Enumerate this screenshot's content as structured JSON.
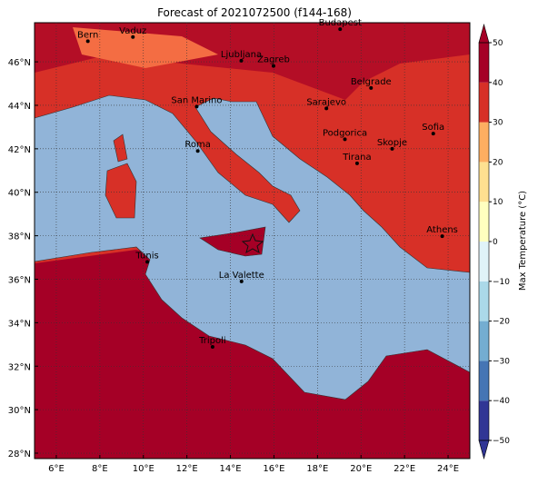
{
  "title": "Forecast of 2021072500 (f144-168)",
  "map": {
    "lon_range": [
      5,
      25
    ],
    "lat_range": [
      27.75,
      47.8
    ],
    "xticks": [
      {
        "value": 6,
        "label": "6°E"
      },
      {
        "value": 8,
        "label": "8°E"
      },
      {
        "value": 10,
        "label": "10°E"
      },
      {
        "value": 12,
        "label": "12°E"
      },
      {
        "value": 14,
        "label": "14°E"
      },
      {
        "value": 16,
        "label": "16°E"
      },
      {
        "value": 18,
        "label": "18°E"
      },
      {
        "value": 20,
        "label": "20°E"
      },
      {
        "value": 22,
        "label": "22°E"
      },
      {
        "value": 24,
        "label": "24°E"
      }
    ],
    "yticks": [
      {
        "value": 28,
        "label": "28°N"
      },
      {
        "value": 30,
        "label": "30°N"
      },
      {
        "value": 32,
        "label": "32°N"
      },
      {
        "value": 34,
        "label": "34°N"
      },
      {
        "value": 36,
        "label": "36°N"
      },
      {
        "value": 38,
        "label": "38°N"
      },
      {
        "value": 40,
        "label": "40°N"
      },
      {
        "value": 42,
        "label": "42°N"
      },
      {
        "value": 44,
        "label": "44°N"
      },
      {
        "value": 46,
        "label": "46°N"
      }
    ],
    "grid": true,
    "cities": [
      {
        "name": "Bern",
        "lon": 7.45,
        "lat": 46.95
      },
      {
        "name": "Vaduz",
        "lon": 9.52,
        "lat": 47.14
      },
      {
        "name": "Budapest",
        "lon": 19.04,
        "lat": 47.5
      },
      {
        "name": "Ljubljana",
        "lon": 14.5,
        "lat": 46.05
      },
      {
        "name": "Zagreb",
        "lon": 15.98,
        "lat": 45.81
      },
      {
        "name": "Belgrade",
        "lon": 20.46,
        "lat": 44.8
      },
      {
        "name": "San Marino",
        "lon": 12.45,
        "lat": 43.94
      },
      {
        "name": "Sarajevo",
        "lon": 18.41,
        "lat": 43.86
      },
      {
        "name": "Sofia",
        "lon": 23.32,
        "lat": 42.7
      },
      {
        "name": "Podgorica",
        "lon": 19.26,
        "lat": 42.44
      },
      {
        "name": "Skopje",
        "lon": 21.43,
        "lat": 42.0
      },
      {
        "name": "Roma",
        "lon": 12.5,
        "lat": 41.9
      },
      {
        "name": "Tirana",
        "lon": 19.82,
        "lat": 41.33
      },
      {
        "name": "Athens",
        "lon": 23.73,
        "lat": 37.98
      },
      {
        "name": "Tunis",
        "lon": 10.18,
        "lat": 36.8
      },
      {
        "name": "La Valette",
        "lon": 14.51,
        "lat": 35.9
      },
      {
        "name": "Tripoli",
        "lon": 13.18,
        "lat": 32.89
      }
    ]
  },
  "colorbar": {
    "label": "Max Temperature (°C)",
    "lim": [
      -50,
      50
    ],
    "ticks": [
      {
        "value": -50,
        "label": "−50"
      },
      {
        "value": -40,
        "label": "−40"
      },
      {
        "value": -30,
        "label": "−30"
      },
      {
        "value": -20,
        "label": "−20"
      },
      {
        "value": -10,
        "label": "−10"
      },
      0,
      10,
      20,
      30,
      40,
      50
    ],
    "colors": [
      "#313695",
      "#4575b4",
      "#74add1",
      "#abd9e9",
      "#e0f3f8",
      "#ffffbf",
      "#fee090",
      "#fdae61",
      "#d73027",
      "#a50026"
    ]
  }
}
